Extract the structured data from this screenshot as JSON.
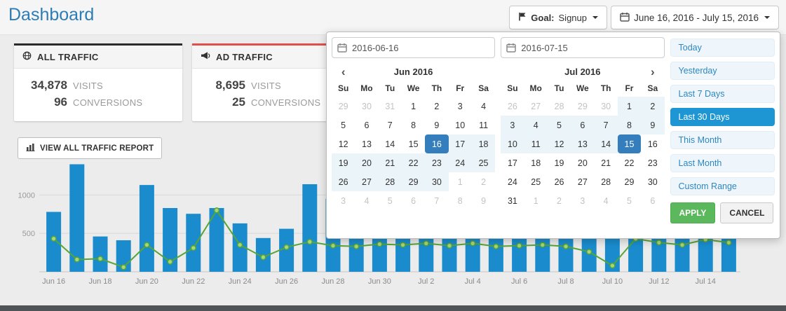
{
  "page": {
    "title": "Dashboard"
  },
  "colors": {
    "title_blue": "#2e7cb5",
    "bar_blue": "#1a8cce",
    "line_green": "#55a538",
    "all_traffic_accent": "#2b2b2b",
    "ad_traffic_accent": "#e04f4a",
    "selected_day_blue": "#357ebd",
    "in_range_blue": "#ebf4f8",
    "active_range_blue": "#1d96d3",
    "apply_green": "#5cb85c"
  },
  "icons": {
    "flag": "flag-icon",
    "calendar": "calendar-icon",
    "globe": "globe-icon",
    "megaphone": "megaphone-icon",
    "bar_chart": "bar-chart-icon",
    "prev_glyph": "‹",
    "next_glyph": "›"
  },
  "header": {
    "goal_label": "Goal:",
    "goal_value": "Signup",
    "date_range": "June 16, 2016 - July 15, 2016"
  },
  "cards": [
    {
      "title": "ALL TRAFFIC",
      "icon": "globe-icon",
      "visits": "34,878",
      "visits_label": "VISITS",
      "conversions": "96",
      "conversions_label": "CONVERSIONS"
    },
    {
      "title": "AD TRAFFIC",
      "icon": "megaphone-icon",
      "visits": "8,695",
      "visits_label": "VISITS",
      "conversions": "25",
      "conversions_label": "CONVERSIONS"
    }
  ],
  "toolbar": {
    "view_report_label": "VIEW ALL TRAFFIC REPORT"
  },
  "chart_data": {
    "type": "bar",
    "x": [
      "Jun 16",
      "Jun 17",
      "Jun 18",
      "Jun 19",
      "Jun 20",
      "Jun 21",
      "Jun 22",
      "Jun 23",
      "Jun 24",
      "Jun 25",
      "Jun 26",
      "Jun 27",
      "Jun 28",
      "Jun 29",
      "Jun 30",
      "Jul 1",
      "Jul 2",
      "Jul 3",
      "Jul 4",
      "Jul 5",
      "Jul 6",
      "Jul 7",
      "Jul 8",
      "Jul 9",
      "Jul 10",
      "Jul 11",
      "Jul 12",
      "Jul 13",
      "Jul 14",
      "Jul 15"
    ],
    "series": [
      {
        "name": "Visits",
        "type": "bar",
        "color": "#1a8cce",
        "values": [
          780,
          1400,
          460,
          410,
          1130,
          830,
          755,
          830,
          630,
          440,
          560,
          1140,
          950,
          870,
          820,
          780,
          890,
          840,
          900,
          860,
          910,
          870,
          930,
          880,
          840,
          900,
          860,
          890,
          870,
          850
        ]
      },
      {
        "name": "Conversions",
        "type": "line",
        "color": "#55a538",
        "values": [
          430,
          160,
          170,
          60,
          350,
          130,
          310,
          800,
          350,
          190,
          320,
          390,
          340,
          330,
          360,
          350,
          370,
          340,
          370,
          330,
          340,
          350,
          330,
          260,
          80,
          430,
          380,
          350,
          420,
          380
        ]
      }
    ],
    "yticks": [
      500,
      1000
    ],
    "ylim": [
      0,
      1450
    ],
    "xtick_every": 2,
    "grid": true,
    "legend": "none"
  },
  "datepicker": {
    "start_input": "2016-06-16",
    "end_input": "2016-07-15",
    "dow": [
      "Su",
      "Mo",
      "Tu",
      "We",
      "Th",
      "Fr",
      "Sa"
    ],
    "calendars": [
      {
        "month": "Jun 2016",
        "prev_arrow": true,
        "next_arrow": false,
        "weeks": [
          [
            [
              29,
              "off"
            ],
            [
              30,
              "off"
            ],
            [
              31,
              "off"
            ],
            [
              1,
              "norm"
            ],
            [
              2,
              "norm"
            ],
            [
              3,
              "norm"
            ],
            [
              4,
              "norm"
            ]
          ],
          [
            [
              5,
              "norm"
            ],
            [
              6,
              "norm"
            ],
            [
              7,
              "norm"
            ],
            [
              8,
              "norm"
            ],
            [
              9,
              "norm"
            ],
            [
              10,
              "norm"
            ],
            [
              11,
              "norm"
            ]
          ],
          [
            [
              12,
              "norm"
            ],
            [
              13,
              "norm"
            ],
            [
              14,
              "norm"
            ],
            [
              15,
              "norm"
            ],
            [
              16,
              "sel"
            ],
            [
              17,
              "inr"
            ],
            [
              18,
              "inr"
            ]
          ],
          [
            [
              19,
              "inr"
            ],
            [
              20,
              "inr"
            ],
            [
              21,
              "inr"
            ],
            [
              22,
              "inr"
            ],
            [
              23,
              "inr"
            ],
            [
              24,
              "inr"
            ],
            [
              25,
              "inr"
            ]
          ],
          [
            [
              26,
              "inr"
            ],
            [
              27,
              "inr"
            ],
            [
              28,
              "inr"
            ],
            [
              29,
              "inr"
            ],
            [
              30,
              "inr"
            ],
            [
              1,
              "off"
            ],
            [
              2,
              "off"
            ]
          ],
          [
            [
              3,
              "off"
            ],
            [
              4,
              "off"
            ],
            [
              5,
              "off"
            ],
            [
              6,
              "off"
            ],
            [
              7,
              "off"
            ],
            [
              8,
              "off"
            ],
            [
              9,
              "off"
            ]
          ]
        ]
      },
      {
        "month": "Jul 2016",
        "prev_arrow": false,
        "next_arrow": true,
        "weeks": [
          [
            [
              26,
              "off"
            ],
            [
              27,
              "off"
            ],
            [
              28,
              "off"
            ],
            [
              29,
              "off"
            ],
            [
              30,
              "off"
            ],
            [
              1,
              "inr"
            ],
            [
              2,
              "inr"
            ]
          ],
          [
            [
              3,
              "inr"
            ],
            [
              4,
              "inr"
            ],
            [
              5,
              "inr"
            ],
            [
              6,
              "inr"
            ],
            [
              7,
              "inr"
            ],
            [
              8,
              "inr"
            ],
            [
              9,
              "inr"
            ]
          ],
          [
            [
              10,
              "inr"
            ],
            [
              11,
              "inr"
            ],
            [
              12,
              "inr"
            ],
            [
              13,
              "inr"
            ],
            [
              14,
              "inr"
            ],
            [
              15,
              "sel"
            ],
            [
              16,
              "norm"
            ]
          ],
          [
            [
              17,
              "norm"
            ],
            [
              18,
              "norm"
            ],
            [
              19,
              "norm"
            ],
            [
              20,
              "norm"
            ],
            [
              21,
              "norm"
            ],
            [
              22,
              "norm"
            ],
            [
              23,
              "norm"
            ]
          ],
          [
            [
              24,
              "norm"
            ],
            [
              25,
              "norm"
            ],
            [
              26,
              "norm"
            ],
            [
              27,
              "norm"
            ],
            [
              28,
              "norm"
            ],
            [
              29,
              "norm"
            ],
            [
              30,
              "norm"
            ]
          ],
          [
            [
              31,
              "norm"
            ],
            [
              1,
              "off"
            ],
            [
              2,
              "off"
            ],
            [
              3,
              "off"
            ],
            [
              4,
              "off"
            ],
            [
              5,
              "off"
            ],
            [
              6,
              "off"
            ]
          ]
        ]
      }
    ],
    "ranges": [
      {
        "label": "Today",
        "active": false
      },
      {
        "label": "Yesterday",
        "active": false
      },
      {
        "label": "Last 7 Days",
        "active": false
      },
      {
        "label": "Last 30 Days",
        "active": true
      },
      {
        "label": "This Month",
        "active": false
      },
      {
        "label": "Last Month",
        "active": false
      },
      {
        "label": "Custom Range",
        "active": false
      }
    ],
    "apply_label": "APPLY",
    "cancel_label": "CANCEL"
  }
}
